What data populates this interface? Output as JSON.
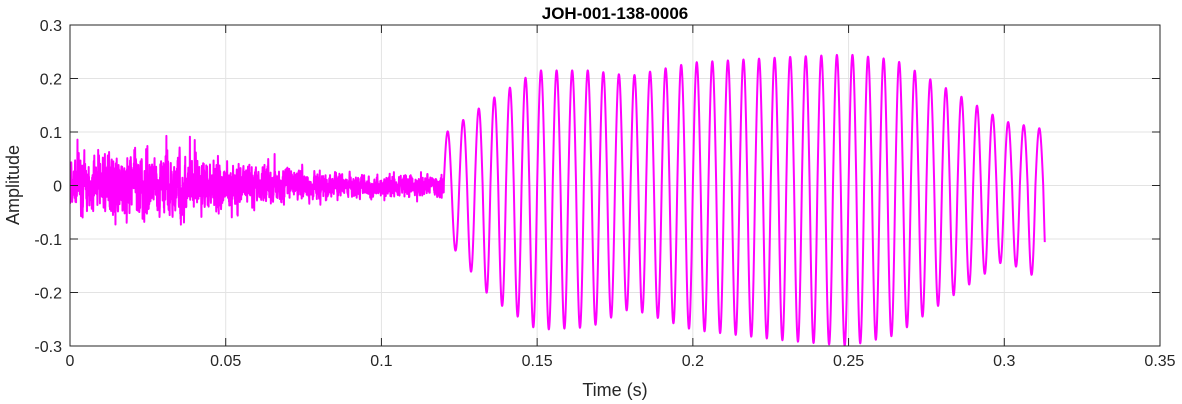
{
  "chart_data": {
    "type": "line",
    "title": "JOH-001-138-0006",
    "xlabel": "Time (s)",
    "ylabel": "Amplitude",
    "xlim": [
      0,
      0.35
    ],
    "ylim": [
      -0.3,
      0.3
    ],
    "grid": true,
    "xticks": [
      0,
      0.05,
      0.1,
      0.15,
      0.2,
      0.25,
      0.3,
      0.35
    ],
    "xtick_labels": [
      "0",
      "0.05",
      "0.1",
      "0.15",
      "0.2",
      "0.25",
      "0.3",
      "0.35"
    ],
    "yticks": [
      -0.3,
      -0.2,
      -0.1,
      0,
      0.1,
      0.2,
      0.3
    ],
    "ytick_labels": [
      "-0.3",
      "-0.2",
      "-0.1",
      "0",
      "0.1",
      "0.2",
      "0.3"
    ],
    "line_color": "#ff00ff",
    "signal": {
      "duration_s": 0.313,
      "noise_segment": {
        "start_s": 0,
        "end_s": 0.12,
        "envelope": [
          [
            0,
            0.05
          ],
          [
            0.02,
            0.07
          ],
          [
            0.035,
            0.06
          ],
          [
            0.06,
            0.04
          ],
          [
            0.09,
            0.025
          ],
          [
            0.12,
            0.02
          ]
        ]
      },
      "tonal_segment": {
        "start_s": 0.12,
        "end_s": 0.313,
        "fundamental_hz": 200,
        "peaks": [
          [
            0.121,
            0.1
          ],
          [
            0.135,
            0.16
          ],
          [
            0.15,
            0.215
          ],
          [
            0.167,
            0.215
          ],
          [
            0.18,
            0.205
          ],
          [
            0.2,
            0.23
          ],
          [
            0.23,
            0.24
          ],
          [
            0.25,
            0.245
          ],
          [
            0.265,
            0.235
          ],
          [
            0.285,
            0.17
          ],
          [
            0.3,
            0.12
          ],
          [
            0.313,
            0.105
          ]
        ],
        "troughs": [
          [
            0.121,
            -0.1
          ],
          [
            0.135,
            -0.21
          ],
          [
            0.15,
            -0.27
          ],
          [
            0.167,
            -0.265
          ],
          [
            0.18,
            -0.23
          ],
          [
            0.2,
            -0.27
          ],
          [
            0.23,
            -0.29
          ],
          [
            0.25,
            -0.3
          ],
          [
            0.265,
            -0.28
          ],
          [
            0.285,
            -0.2
          ],
          [
            0.3,
            -0.14
          ],
          [
            0.313,
            -0.18
          ]
        ]
      }
    }
  }
}
